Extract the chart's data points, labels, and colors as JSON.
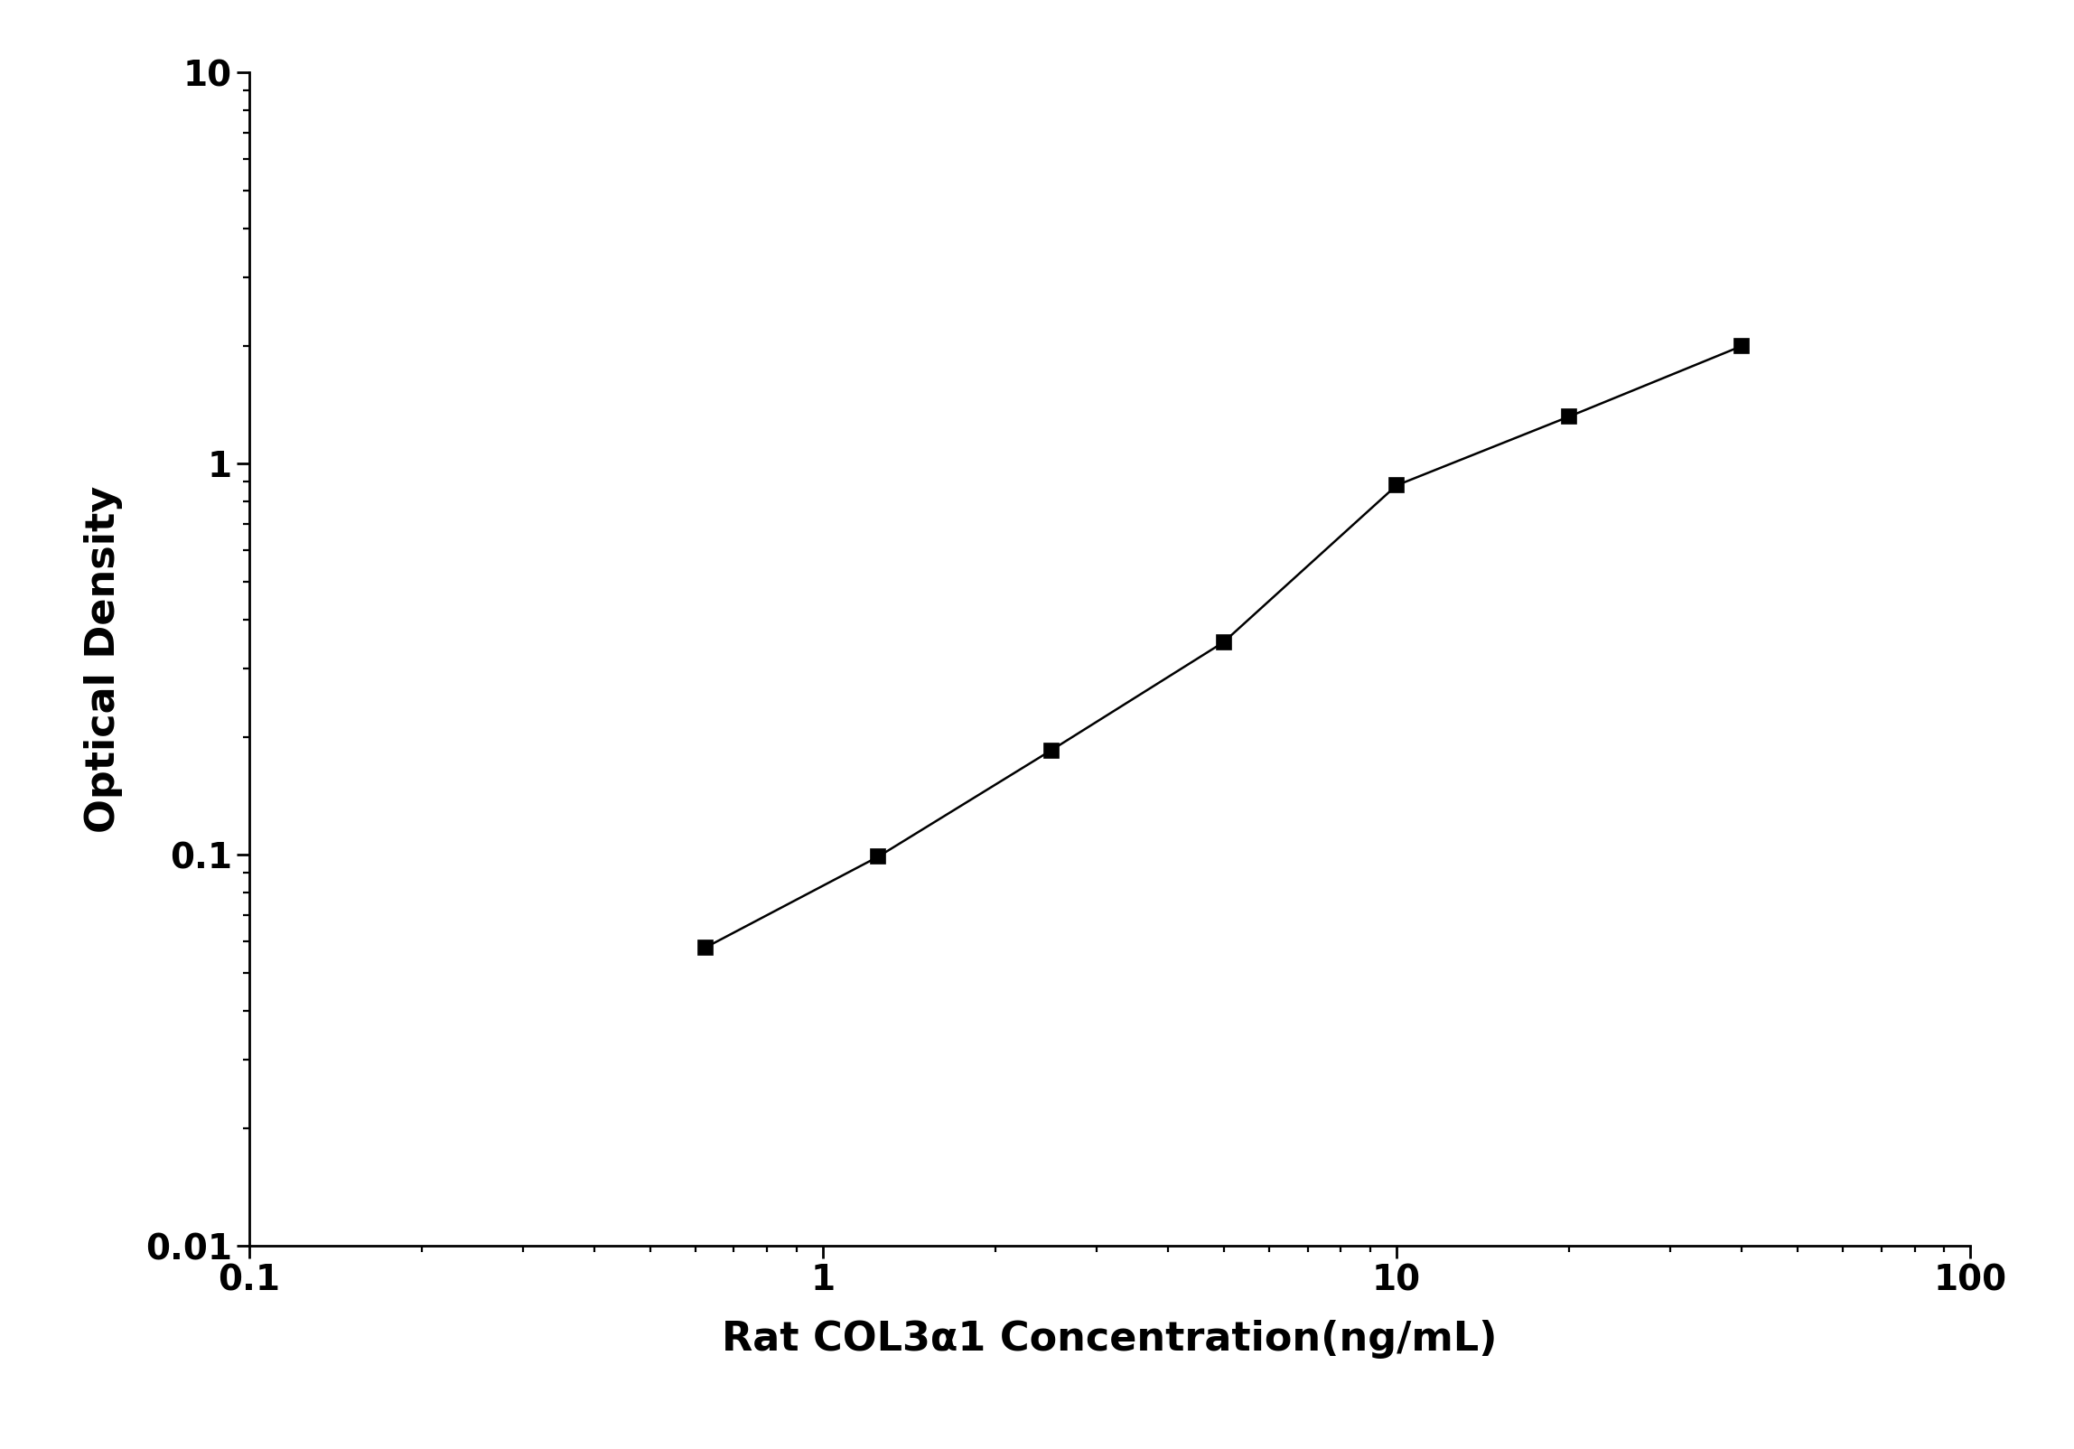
{
  "x": [
    0.625,
    1.25,
    2.5,
    5.0,
    10.0,
    20.0,
    40.0
  ],
  "y": [
    0.058,
    0.099,
    0.185,
    0.35,
    0.88,
    1.32,
    2.0
  ],
  "xlabel": "Rat COL3α1 Concentration(ng/mL)",
  "ylabel": "Optical Density",
  "xlim": [
    0.1,
    100
  ],
  "ylim": [
    0.01,
    10
  ],
  "line_color": "#000000",
  "marker": "s",
  "marker_size": 11,
  "marker_facecolor": "#000000",
  "marker_edgecolor": "#000000",
  "linewidth": 1.8,
  "xlabel_fontsize": 32,
  "ylabel_fontsize": 32,
  "tick_fontsize": 28,
  "background_color": "#ffffff",
  "spine_linewidth": 2.0
}
